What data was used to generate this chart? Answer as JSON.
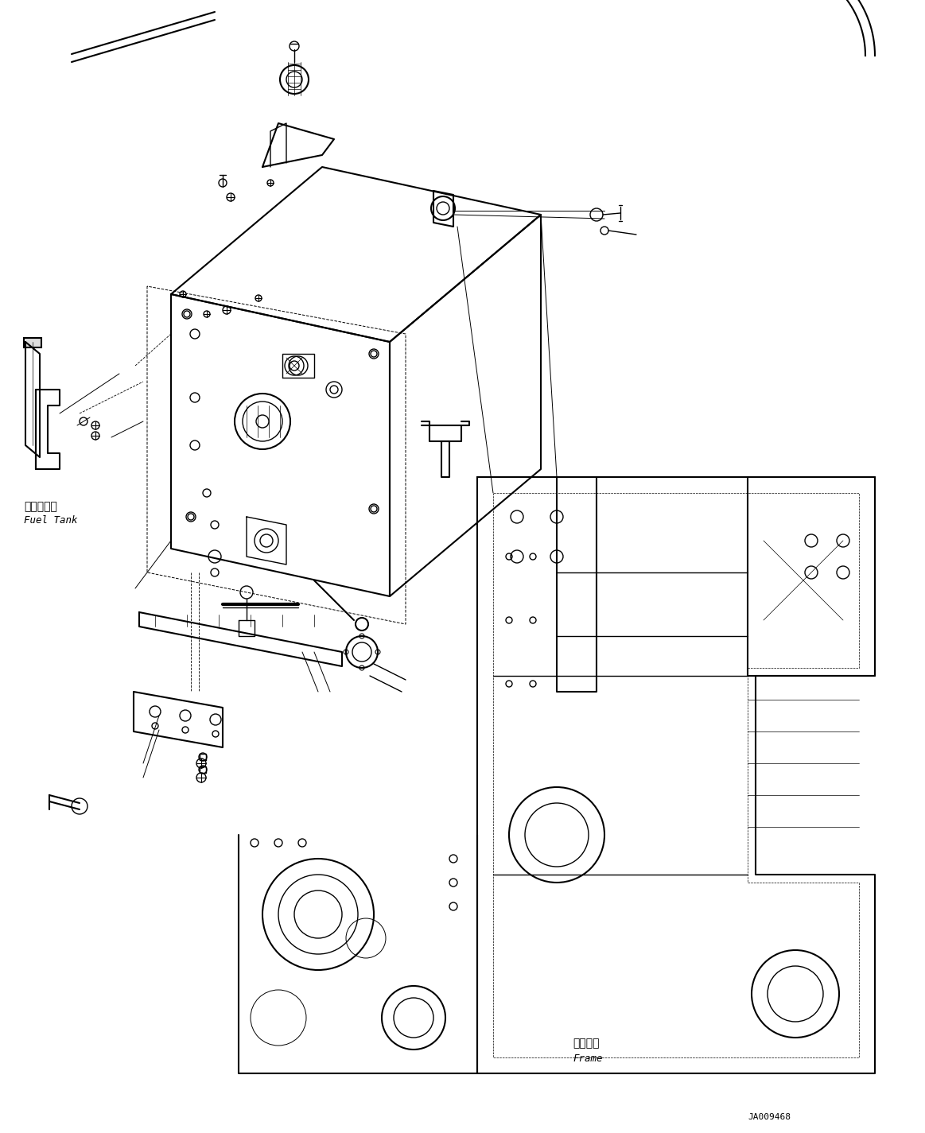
{
  "background_color": "#ffffff",
  "line_color": "#000000",
  "figsize": [
    11.63,
    14.25
  ],
  "dpi": 100,
  "fuel_tank_label_jp": "燃料タンク",
  "fuel_tank_label_en": "Fuel Tank",
  "frame_label_jp": "フレーム",
  "frame_label_en": "Frame",
  "part_number": "JA009468"
}
